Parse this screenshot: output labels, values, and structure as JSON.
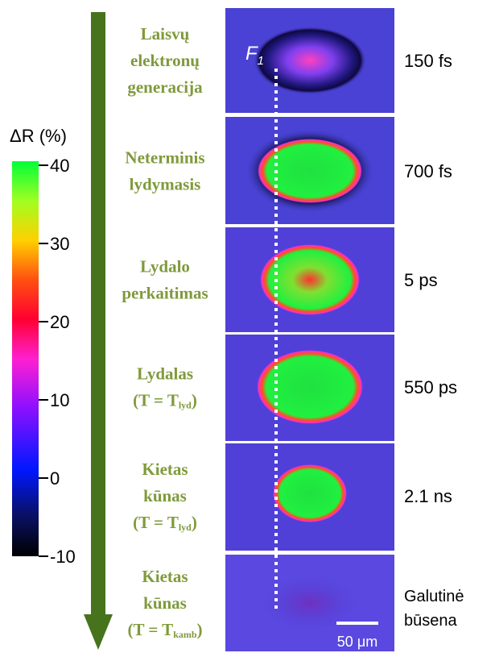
{
  "colorbar": {
    "title": "ΔR (%)",
    "range": [
      -10,
      40
    ],
    "ticks": [
      40,
      30,
      20,
      10,
      0,
      -10
    ]
  },
  "pointer": {
    "text": "F",
    "sub": "1"
  },
  "scale_bar": "50 μm",
  "stages": [
    {
      "lines": [
        {
          "text": "Laisvų"
        },
        {
          "text": "elektronų"
        },
        {
          "text": "generacija"
        }
      ],
      "time": [
        "150 fs"
      ]
    },
    {
      "lines": [
        {
          "text": "Neterminis"
        },
        {
          "text": "lydymasis"
        }
      ],
      "time": [
        "700 fs"
      ]
    },
    {
      "lines": [
        {
          "text": "Lydalo"
        },
        {
          "text": "perkaitimas"
        }
      ],
      "time": [
        "5 ps"
      ]
    },
    {
      "lines": [
        {
          "text": "Lydalas"
        },
        {
          "text": "(T = T",
          "sub": "lyd",
          "tail": ")"
        }
      ],
      "time": [
        "550 ps"
      ]
    },
    {
      "lines": [
        {
          "text": "Kietas"
        },
        {
          "text": "kūnas"
        },
        {
          "text": "(T = T",
          "sub": "lyd",
          "tail": ")"
        }
      ],
      "time": [
        "2.1 ns"
      ]
    },
    {
      "lines": [
        {
          "text": "Kietas"
        },
        {
          "text": "kūnas"
        },
        {
          "text": "(T = T",
          "sub": "kamb",
          "tail": ")"
        }
      ],
      "time": [
        "Galutinė",
        "būsena"
      ]
    }
  ]
}
